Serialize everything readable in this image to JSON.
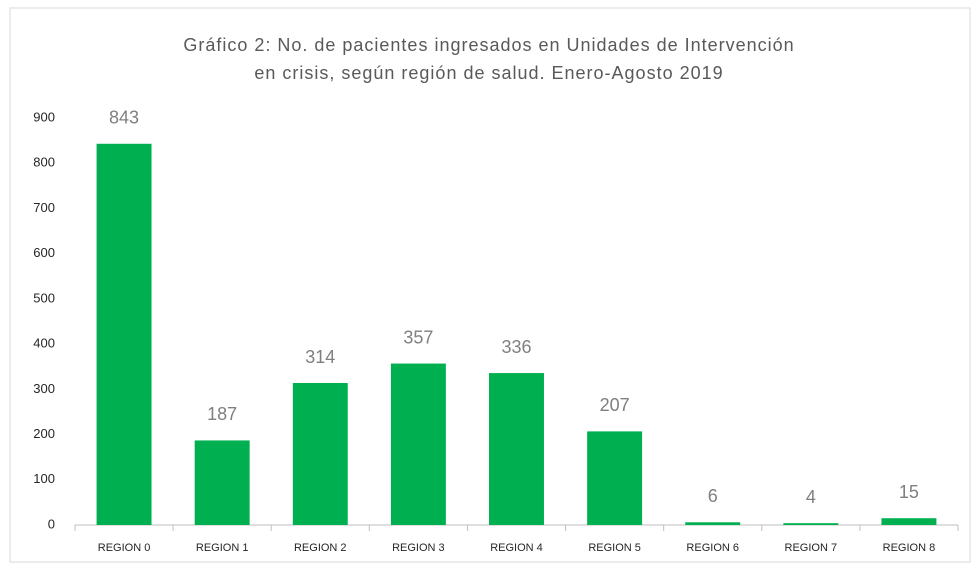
{
  "chart_data": {
    "type": "bar",
    "title": [
      "Gráfico 2: No. de pacientes ingresados en Unidades de Intervención",
      "en crisis, según región de salud. Enero-Agosto 2019"
    ],
    "categories": [
      "REGION 0",
      "REGION 1",
      "REGION 2",
      "REGION 3",
      "REGION 4",
      "REGION 5",
      "REGION 6",
      "REGION 7",
      "REGION 8"
    ],
    "values": [
      843,
      187,
      314,
      357,
      336,
      207,
      6,
      4,
      15
    ],
    "color": "#00b050",
    "ylim": [
      0,
      900
    ],
    "yticks": [
      0,
      100,
      200,
      300,
      400,
      500,
      600,
      700,
      800,
      900
    ],
    "grid": false
  }
}
